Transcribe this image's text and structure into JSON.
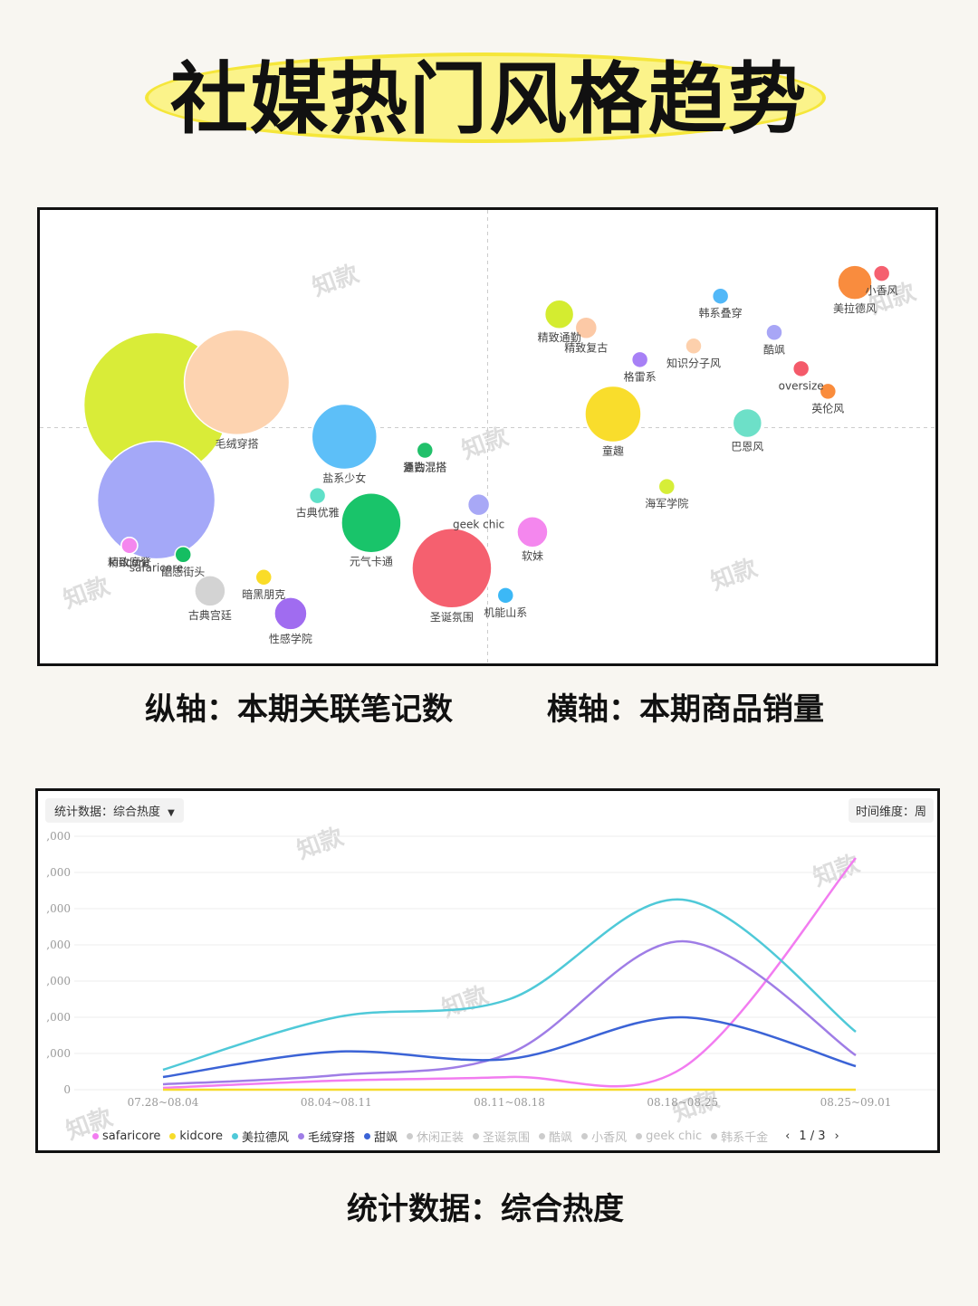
{
  "title": "社媒热门风格趋势",
  "captions": {
    "y_axis": "纵轴：本期关联笔记数",
    "x_axis": "横轴：本期商品销量",
    "stat": "统计数据：综合热度"
  },
  "watermark": "知款",
  "line_panel": {
    "stat_label": "统计数据：综合热度",
    "time_label": "时间维度：周",
    "pager": "1 / 3",
    "prev_icon": "chevron-left-icon",
    "next_icon": "chevron-right-icon"
  },
  "chart_data": [
    {
      "type": "scatter",
      "subtype": "bubble",
      "quadrant_lines": true,
      "points": [
        {
          "name": "safaricore",
          "x": 13,
          "y": 36,
          "r": 65,
          "color": "#a4a8f8"
        },
        {
          "name": "",
          "x": 13,
          "y": 57,
          "r": 80,
          "color": "#d9ec38"
        },
        {
          "name": "毛绒穿搭",
          "x": 22,
          "y": 62,
          "r": 58,
          "color": "#fdd3b0"
        },
        {
          "name": "盐系少女",
          "x": 34,
          "y": 50,
          "r": 36,
          "color": "#5dbff8"
        },
        {
          "name": "复古混搭",
          "x": 43,
          "y": 47,
          "r": 9,
          "color": "#cfcfcf"
        },
        {
          "name": "通勤混搭",
          "x": 43,
          "y": 47,
          "r": 9,
          "color": "#21c06a"
        },
        {
          "name": "古典优雅",
          "x": 31,
          "y": 37,
          "r": 9,
          "color": "#5fe0c8"
        },
        {
          "name": "元气卡通",
          "x": 37,
          "y": 31,
          "r": 33,
          "color": "#19c46a"
        },
        {
          "name": "kidcore",
          "x": 10,
          "y": 26,
          "r": 9,
          "color": "#f487ee"
        },
        {
          "name": "精致摩登",
          "x": 10,
          "y": 26,
          "r": 9,
          "color": "#f487ee"
        },
        {
          "name": "酷感街头",
          "x": 16,
          "y": 24,
          "r": 9,
          "color": "#15be62"
        },
        {
          "name": "古典宫廷",
          "x": 19,
          "y": 16,
          "r": 17,
          "color": "#d3d3d3"
        },
        {
          "name": "暗黑朋克",
          "x": 25,
          "y": 19,
          "r": 9,
          "color": "#fadc28"
        },
        {
          "name": "性感学院",
          "x": 28,
          "y": 11,
          "r": 18,
          "color": "#a06cf0"
        },
        {
          "name": "geek chic",
          "x": 49,
          "y": 35,
          "r": 12,
          "color": "#a8a8f6"
        },
        {
          "name": "圣诞氛围",
          "x": 46,
          "y": 21,
          "r": 44,
          "color": "#f5606f"
        },
        {
          "name": "软妹",
          "x": 55,
          "y": 29,
          "r": 17,
          "color": "#f487ee"
        },
        {
          "name": "机能山系",
          "x": 52,
          "y": 15,
          "r": 9,
          "color": "#3cb8f6"
        },
        {
          "name": "精致通勤",
          "x": 58,
          "y": 77,
          "r": 16,
          "color": "#d4ec30"
        },
        {
          "name": "精致复古",
          "x": 61,
          "y": 74,
          "r": 12,
          "color": "#fcc9a6"
        },
        {
          "name": "格雷系",
          "x": 67,
          "y": 67,
          "r": 9,
          "color": "#a780f6"
        },
        {
          "name": "童趣",
          "x": 64,
          "y": 55,
          "r": 31,
          "color": "#f9dd2c"
        },
        {
          "name": "知识分子风",
          "x": 73,
          "y": 70,
          "r": 9,
          "color": "#fdd0ac"
        },
        {
          "name": "韩系叠穿",
          "x": 76,
          "y": 81,
          "r": 9,
          "color": "#52b8f8"
        },
        {
          "name": "巴恩风",
          "x": 79,
          "y": 53,
          "r": 16,
          "color": "#6de0c8"
        },
        {
          "name": "海军学院",
          "x": 70,
          "y": 39,
          "r": 9,
          "color": "#d6ee38"
        },
        {
          "name": "酷飒",
          "x": 82,
          "y": 73,
          "r": 9,
          "color": "#a8a6f6"
        },
        {
          "name": "oversize",
          "x": 85,
          "y": 65,
          "r": 9,
          "color": "#f45a6a"
        },
        {
          "name": "英伦风",
          "x": 88,
          "y": 60,
          "r": 9,
          "color": "#fa8c3c"
        },
        {
          "name": "美拉德风",
          "x": 91,
          "y": 84,
          "r": 19,
          "color": "#f98c3e"
        },
        {
          "name": "小香风",
          "x": 94,
          "y": 86,
          "r": 9,
          "color": "#f5606f"
        }
      ]
    },
    {
      "type": "line",
      "categories": [
        "07.28~08.04",
        "08.04~08.11",
        "08.11~08.18",
        "08.18~08.25",
        "08.25~09.01"
      ],
      "y_ticks": [
        ",000",
        ",000",
        ",000",
        ",000",
        ",000",
        ",000",
        ",000",
        "0"
      ],
      "series": [
        {
          "name": "safaricore",
          "values": [
            1,
            5,
            7,
            12,
            128
          ],
          "color": "#f27cf0"
        },
        {
          "name": "kidcore",
          "values": [
            0,
            0,
            0,
            0,
            0
          ],
          "color": "#f7dc2a"
        },
        {
          "name": "美拉德风",
          "values": [
            11,
            40,
            50,
            105,
            32
          ],
          "color": "#4fc9d8"
        },
        {
          "name": "毛绒穿搭",
          "values": [
            3,
            8,
            20,
            82,
            19
          ],
          "color": "#9f7de6"
        },
        {
          "name": "甜飒",
          "values": [
            7,
            21,
            17,
            40,
            13
          ],
          "color": "#3b63d6"
        }
      ],
      "legend_inactive": [
        "休闲正装",
        "圣诞氛围",
        "酷飒",
        "小香风",
        "geek chic",
        "韩系千金"
      ],
      "ylim": [
        0,
        140
      ],
      "legend_position": "bottom"
    }
  ]
}
